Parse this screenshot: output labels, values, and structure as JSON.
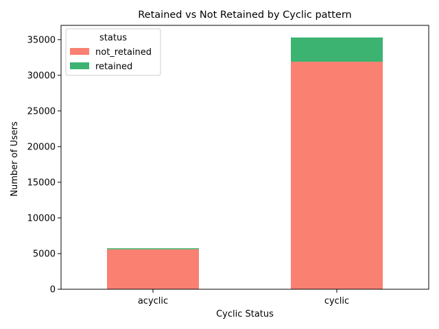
{
  "chart_data": {
    "type": "bar",
    "stacked": true,
    "title": "Retained vs Not Retained by Cyclic pattern",
    "xlabel": "Cyclic Status",
    "ylabel": "Number of Users",
    "categories": [
      "acyclic",
      "cyclic"
    ],
    "series": [
      {
        "name": "not_retained",
        "color": "#fa8072",
        "values": [
          5600,
          31900
        ]
      },
      {
        "name": "retained",
        "color": "#3cb371",
        "values": [
          150,
          3400
        ]
      }
    ],
    "ylim": [
      0,
      37000
    ],
    "yticks": [
      0,
      5000,
      10000,
      15000,
      20000,
      25000,
      30000,
      35000
    ],
    "grid": false,
    "legend": {
      "title": "status",
      "position": "upper-left"
    }
  }
}
